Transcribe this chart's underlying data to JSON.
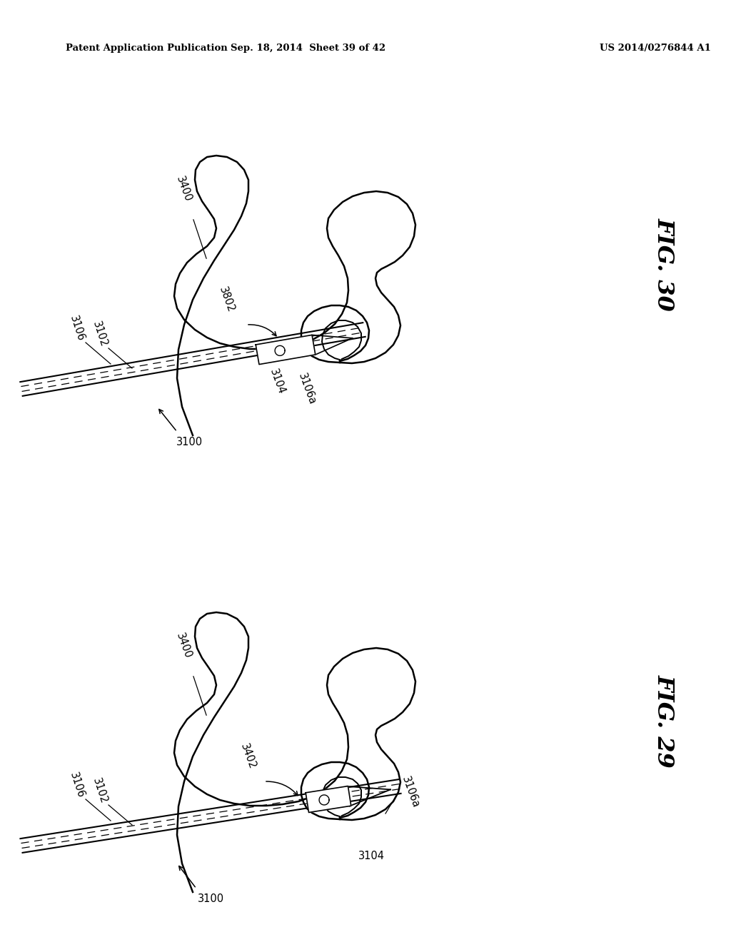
{
  "bg_color": "#ffffff",
  "header_left": "Patent Application Publication",
  "header_mid": "Sep. 18, 2014  Sheet 39 of 42",
  "header_right": "US 2014/0276844 A1",
  "fig30_label": "FIG. 30",
  "fig29_label": "FIG. 29",
  "line_color": "#000000",
  "lw_bone": 1.8,
  "lw_wire": 1.5,
  "lw_dash": 1.0
}
